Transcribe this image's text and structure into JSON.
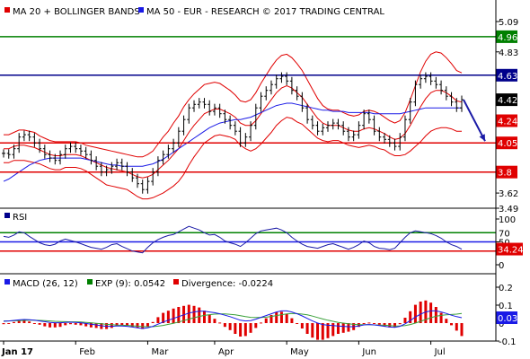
{
  "chart_data": [
    {
      "type": "line",
      "panel": "price",
      "legend": [
        {
          "text": "MA 20 + BOLLINGER BANDS",
          "color": "#e00000"
        },
        {
          "text": "MA 50 - EUR - RESEARCH © 2017 TRADING CENTRAL",
          "color": "#1a1ae6"
        }
      ],
      "ylim": [
        3.49,
        5.09
      ],
      "y_ticks": [
        "5.09",
        "4.83",
        "3.62",
        "3.49"
      ],
      "x_labels": [
        "Jan 17",
        "Feb",
        "Mar",
        "Apr",
        "May",
        "Jun",
        "Jul"
      ],
      "levels": [
        {
          "value": 4.96,
          "label": "4.96",
          "color": "#008000"
        },
        {
          "value": 4.63,
          "label": "4.63",
          "color": "#00008b"
        },
        {
          "value": 4.05,
          "label": "4.05",
          "color": "#e00000"
        },
        {
          "value": 3.8,
          "label": "3.8",
          "color": "#e00000"
        }
      ],
      "value_tags": [
        {
          "value": 4.42,
          "label": "4.42",
          "color": "#000000"
        },
        {
          "value": 4.24,
          "label": "4.24",
          "color": "#e00000"
        }
      ],
      "price_series": [
        3.96,
        3.95,
        4.0,
        4.1,
        4.12,
        4.1,
        4.05,
        4.0,
        3.95,
        3.92,
        3.9,
        3.95,
        4.0,
        4.02,
        4.0,
        3.98,
        3.95,
        3.9,
        3.85,
        3.8,
        3.82,
        3.85,
        3.88,
        3.85,
        3.8,
        3.75,
        3.7,
        3.65,
        3.72,
        3.8,
        3.9,
        3.95,
        4.0,
        4.05,
        4.15,
        4.25,
        4.35,
        4.38,
        4.4,
        4.38,
        4.32,
        4.35,
        4.3,
        4.25,
        4.2,
        4.15,
        4.05,
        4.1,
        4.2,
        4.35,
        4.45,
        4.5,
        4.55,
        4.6,
        4.62,
        4.58,
        4.5,
        4.45,
        4.35,
        4.25,
        4.2,
        4.15,
        4.18,
        4.2,
        4.22,
        4.2,
        4.15,
        4.1,
        4.12,
        4.2,
        4.3,
        4.25,
        4.15,
        4.1,
        4.08,
        4.05,
        4.02,
        4.1,
        4.25,
        4.4,
        4.55,
        4.6,
        4.62,
        4.58,
        4.55,
        4.5,
        4.45,
        4.4,
        4.35,
        4.42
      ],
      "ma20": [
        4.0,
        4.0,
        4.02,
        4.03,
        4.03,
        4.02,
        4.01,
        3.99,
        3.97,
        3.95,
        3.94,
        3.94,
        3.95,
        3.95,
        3.95,
        3.94,
        3.92,
        3.9,
        3.88,
        3.86,
        3.84,
        3.83,
        3.82,
        3.81,
        3.8,
        3.78,
        3.76,
        3.75,
        3.76,
        3.78,
        3.82,
        3.86,
        3.9,
        3.95,
        4.0,
        4.07,
        4.14,
        4.2,
        4.25,
        4.3,
        4.32,
        4.34,
        4.34,
        4.32,
        4.3,
        4.27,
        4.22,
        4.2,
        4.2,
        4.24,
        4.3,
        4.36,
        4.42,
        4.48,
        4.52,
        4.54,
        4.52,
        4.48,
        4.44,
        4.38,
        4.32,
        4.26,
        4.22,
        4.2,
        4.2,
        4.2,
        4.18,
        4.16,
        4.15,
        4.15,
        4.17,
        4.18,
        4.17,
        4.15,
        4.13,
        4.1,
        4.08,
        4.09,
        4.13,
        4.2,
        4.28,
        4.36,
        4.43,
        4.48,
        4.5,
        4.5,
        4.48,
        4.45,
        4.41,
        4.4
      ],
      "ma50": [
        3.72,
        3.74,
        3.77,
        3.8,
        3.83,
        3.86,
        3.88,
        3.9,
        3.91,
        3.92,
        3.92,
        3.92,
        3.92,
        3.92,
        3.92,
        3.92,
        3.91,
        3.9,
        3.89,
        3.88,
        3.87,
        3.86,
        3.86,
        3.85,
        3.85,
        3.85,
        3.85,
        3.85,
        3.86,
        3.87,
        3.89,
        3.91,
        3.94,
        3.97,
        4.0,
        4.03,
        4.06,
        4.09,
        4.12,
        4.15,
        4.18,
        4.2,
        4.22,
        4.23,
        4.24,
        4.25,
        4.25,
        4.26,
        4.27,
        4.29,
        4.31,
        4.33,
        4.35,
        4.37,
        4.38,
        4.39,
        4.39,
        4.38,
        4.37,
        4.36,
        4.35,
        4.34,
        4.33,
        4.33,
        4.32,
        4.32,
        4.32,
        4.31,
        4.31,
        4.31,
        4.31,
        4.31,
        4.3,
        4.3,
        4.3,
        4.3,
        4.3,
        4.3,
        4.31,
        4.32,
        4.33,
        4.34,
        4.35,
        4.35,
        4.35,
        4.35,
        4.35,
        4.35,
        4.35,
        4.35
      ],
      "band_width": [
        0.12,
        0.12,
        0.12,
        0.13,
        0.13,
        0.13,
        0.13,
        0.12,
        0.12,
        0.12,
        0.12,
        0.12,
        0.11,
        0.11,
        0.11,
        0.11,
        0.11,
        0.12,
        0.13,
        0.14,
        0.15,
        0.15,
        0.15,
        0.15,
        0.15,
        0.16,
        0.17,
        0.18,
        0.19,
        0.2,
        0.22,
        0.24,
        0.25,
        0.27,
        0.28,
        0.29,
        0.28,
        0.27,
        0.26,
        0.25,
        0.24,
        0.23,
        0.22,
        0.21,
        0.2,
        0.19,
        0.19,
        0.2,
        0.22,
        0.24,
        0.26,
        0.27,
        0.28,
        0.28,
        0.28,
        0.27,
        0.26,
        0.25,
        0.23,
        0.21,
        0.19,
        0.17,
        0.15,
        0.14,
        0.13,
        0.13,
        0.13,
        0.13,
        0.13,
        0.14,
        0.15,
        0.15,
        0.15,
        0.15,
        0.14,
        0.14,
        0.14,
        0.15,
        0.18,
        0.22,
        0.26,
        0.3,
        0.32,
        0.33,
        0.33,
        0.32,
        0.3,
        0.28,
        0.26,
        0.25
      ],
      "forecast_arrow": {
        "from": 4.42,
        "to": 4.05,
        "color": "#1a1aa6"
      }
    },
    {
      "type": "line",
      "panel": "rsi",
      "legend": [
        {
          "text": "RSI",
          "color": "#00008b"
        }
      ],
      "ylim": [
        0,
        100
      ],
      "y_ticks": [
        "100",
        "50",
        "0"
      ],
      "levels": [
        {
          "value": 70,
          "label": "70",
          "color": "#008000"
        },
        {
          "value": 50,
          "label": "50",
          "color": "#1a1ae6"
        },
        {
          "value": 30,
          "label": "30",
          "color": "#e00000"
        }
      ],
      "value_tags": [
        {
          "value": 34.24,
          "label": "34.24",
          "color": "#e00000"
        }
      ],
      "values": [
        62,
        60,
        65,
        72,
        70,
        62,
        55,
        48,
        44,
        42,
        45,
        52,
        56,
        53,
        50,
        46,
        42,
        38,
        36,
        34,
        38,
        44,
        46,
        40,
        35,
        30,
        28,
        26,
        38,
        48,
        55,
        60,
        64,
        66,
        72,
        78,
        84,
        80,
        76,
        70,
        65,
        66,
        60,
        52,
        48,
        45,
        40,
        48,
        58,
        68,
        74,
        76,
        78,
        80,
        76,
        70,
        60,
        52,
        45,
        40,
        38,
        36,
        40,
        44,
        46,
        42,
        38,
        34,
        38,
        44,
        52,
        48,
        40,
        36,
        35,
        33,
        36,
        48,
        60,
        70,
        74,
        72,
        70,
        68,
        64,
        58,
        50,
        44,
        40,
        34
      ]
    },
    {
      "type": "line",
      "panel": "macd",
      "legend": [
        {
          "text": "MACD (26, 12)",
          "color": "#1a1ae6"
        },
        {
          "text": "EXP (9): 0.0542",
          "color": "#008000"
        },
        {
          "text": "Divergence: -0.0224",
          "color": "#e00000"
        }
      ],
      "ylim": [
        -0.1,
        0.2
      ],
      "y_ticks": [
        "0.2",
        "0.1",
        "0",
        "-0.1"
      ],
      "value_tags": [
        {
          "value": 0.03,
          "label": "0.03",
          "color": "#1a1ae6"
        }
      ],
      "macd": [
        0.01,
        0.012,
        0.015,
        0.018,
        0.02,
        0.019,
        0.016,
        0.012,
        0.008,
        0.004,
        0.002,
        0.002,
        0.004,
        0.005,
        0.004,
        0.002,
        -0.002,
        -0.006,
        -0.01,
        -0.015,
        -0.018,
        -0.018,
        -0.016,
        -0.016,
        -0.018,
        -0.022,
        -0.026,
        -0.03,
        -0.026,
        -0.018,
        -0.006,
        0.006,
        0.016,
        0.026,
        0.036,
        0.046,
        0.056,
        0.062,
        0.066,
        0.066,
        0.062,
        0.058,
        0.052,
        0.044,
        0.036,
        0.026,
        0.016,
        0.012,
        0.014,
        0.022,
        0.032,
        0.042,
        0.052,
        0.062,
        0.068,
        0.068,
        0.062,
        0.052,
        0.04,
        0.026,
        0.012,
        0.0,
        -0.008,
        -0.012,
        -0.014,
        -0.016,
        -0.018,
        -0.02,
        -0.02,
        -0.016,
        -0.01,
        -0.008,
        -0.01,
        -0.014,
        -0.018,
        -0.022,
        -0.024,
        -0.018,
        -0.004,
        0.014,
        0.034,
        0.05,
        0.062,
        0.068,
        0.068,
        0.062,
        0.054,
        0.044,
        0.036,
        0.03
      ],
      "signal": [
        0.012,
        0.012,
        0.013,
        0.014,
        0.015,
        0.016,
        0.016,
        0.015,
        0.014,
        0.012,
        0.01,
        0.009,
        0.008,
        0.007,
        0.007,
        0.006,
        0.004,
        0.002,
        -0.001,
        -0.004,
        -0.007,
        -0.009,
        -0.011,
        -0.012,
        -0.013,
        -0.015,
        -0.017,
        -0.019,
        -0.02,
        -0.02,
        -0.017,
        -0.013,
        -0.007,
        -0.001,
        0.006,
        0.014,
        0.022,
        0.03,
        0.037,
        0.043,
        0.047,
        0.05,
        0.051,
        0.051,
        0.049,
        0.046,
        0.041,
        0.036,
        0.032,
        0.031,
        0.031,
        0.033,
        0.037,
        0.042,
        0.047,
        0.051,
        0.053,
        0.053,
        0.05,
        0.046,
        0.039,
        0.031,
        0.023,
        0.016,
        0.01,
        0.004,
        0.0,
        -0.004,
        -0.007,
        -0.009,
        -0.009,
        -0.009,
        -0.01,
        -0.011,
        -0.012,
        -0.014,
        -0.016,
        -0.016,
        -0.014,
        -0.008,
        0.0,
        0.01,
        0.02,
        0.03,
        0.038,
        0.043,
        0.046,
        0.048,
        0.05,
        0.054
      ]
    }
  ]
}
